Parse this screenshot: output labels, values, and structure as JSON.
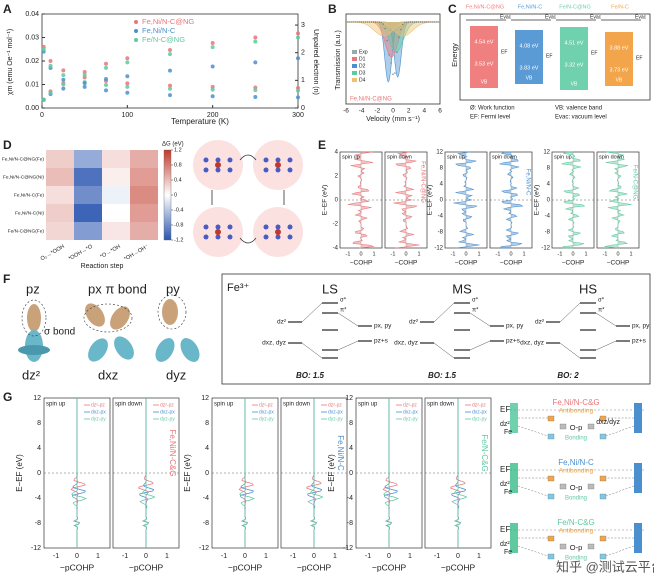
{
  "chart_data": [
    {
      "type": "line",
      "label": "A",
      "x_label": "Temperature (K)",
      "y_label": "χm (emu Oe⁻¹ mol⁻¹)",
      "y2_label": "Unpaired electron (n)",
      "x": [
        2,
        10,
        25,
        50,
        75,
        100,
        150,
        200,
        250,
        300
      ],
      "xlim": [
        0,
        300
      ],
      "xticks": [
        0,
        100,
        200,
        300
      ],
      "ylim": [
        0,
        0.04
      ],
      "yticks": [
        {
          "value": 0,
          "label": "0.00"
        },
        {
          "value": 0.01,
          "label": "0.01"
        },
        {
          "value": 0.02,
          "label": "0.02"
        },
        {
          "value": 0.03,
          "label": "0.03"
        },
        {
          "value": 0.04,
          "label": "0.04"
        }
      ],
      "y2lim": [
        0,
        3.4
      ],
      "y2ticks": [
        0,
        1,
        2,
        3
      ],
      "series": [
        {
          "name": "Fe,Ni/N-C@NG",
          "color": "#e8767a",
          "values": [
            0.026,
            0.02,
            0.016,
            0.013,
            0.0115,
            0.0105,
            0.0095,
            0.009,
            0.0087,
            0.0085
          ]
        },
        {
          "name": "Fe,Ni/N-C",
          "color": "#4a90d0",
          "values": [
            0.024,
            0.017,
            0.012,
            0.009,
            0.0075,
            0.0065,
            0.0055,
            0.005,
            0.0047,
            0.0045
          ]
        },
        {
          "name": "Fe/N-C@NG",
          "color": "#5fc9a0",
          "values": [
            0.025,
            0.018,
            0.014,
            0.011,
            0.0098,
            0.009,
            0.0082,
            0.0078,
            0.0076,
            0.0074
          ]
        },
        {
          "axis": "y2",
          "color": "#e8767a",
          "values": [
            0.3,
            0.6,
            0.9,
            1.3,
            1.6,
            1.8,
            2.1,
            2.35,
            2.55,
            2.7
          ]
        },
        {
          "axis": "y2",
          "color": "#4a90d0",
          "values": [
            0.3,
            0.5,
            0.7,
            0.9,
            1.05,
            1.15,
            1.35,
            1.5,
            1.65,
            1.8
          ]
        },
        {
          "axis": "y2",
          "color": "#5fc9a0",
          "values": [
            0.3,
            0.55,
            0.85,
            1.2,
            1.45,
            1.65,
            1.95,
            2.2,
            2.4,
            2.55
          ]
        }
      ]
    },
    {
      "type": "heatmap",
      "label": "D",
      "title": "ΔG (eV)",
      "x_label": "Reaction step",
      "categories": [
        "O₂→*OOH",
        "*OOH→*O",
        "*O→*OH",
        "*OH→OH⁻"
      ],
      "rows": [
        "Fe,Ni/N-C@NG(Fe)",
        "Fe,Ni/N-C@NG(Ni)",
        "Fe,Ni/N-C(Fe)",
        "Fe,Ni/N-C(Ni)",
        "Fe/N-C@NG(Fe)"
      ],
      "values": [
        [
          0.3,
          -0.6,
          0.2,
          0.5
        ],
        [
          0.4,
          -1.0,
          0.1,
          0.6
        ],
        [
          0.2,
          -0.8,
          -0.1,
          0.7
        ],
        [
          0.3,
          -1.1,
          0.0,
          0.6
        ],
        [
          0.25,
          -0.7,
          0.15,
          0.5
        ]
      ],
      "zlim": [
        -1.2,
        1.2
      ],
      "zticks": [
        1.2,
        0.8,
        0.4,
        0,
        -0.4,
        -0.8,
        -1.2
      ]
    }
  ],
  "figure": {
    "B": {
      "label": "B",
      "x_label": "Velocity (mm s⁻¹)",
      "y_label": "Transmission (a.u.)",
      "sample": "Fe,Ni/N-C@NG",
      "legend": [
        "Exp",
        "D1",
        "D2",
        "D3",
        "D4"
      ],
      "xticks": [
        -6,
        -4,
        -2,
        0,
        2,
        4,
        6
      ]
    },
    "C": {
      "label": "C",
      "samples": [
        "Fe,Ni/N-C@NG",
        "Fe,Ni/N-C",
        "Fe/N-C@NG",
        "Fe/N-C"
      ],
      "work": [
        "4.54 eV",
        "4.08 eV",
        "4.51 eV",
        "3.88 eV"
      ],
      "vb": [
        "3.53 eV",
        "3.83 eV",
        "3.32 eV",
        "3.73 eV"
      ],
      "evac": "Evac",
      "ef": "EF",
      "vbl": "VB",
      "y_label": "Energy",
      "notes": [
        "Ø: Work function",
        "VB: valence band",
        "EF: Fermi level",
        "Evac: vacuum level"
      ]
    },
    "E": {
      "label": "E",
      "groups": [
        {
          "sample": "Fe,Ni/N-C@NG",
          "color": "#e8767a",
          "yticks": [
            4,
            2,
            0,
            -2,
            -4
          ]
        },
        {
          "sample": "Fe,Ni/N-C",
          "color": "#4a90d0",
          "yticks": [
            12,
            8,
            4,
            0,
            -4,
            -8,
            -12
          ]
        },
        {
          "sample": "Fe/N-C@NG",
          "color": "#5fc9a0",
          "yticks": [
            12,
            8,
            4,
            0,
            -4,
            -8,
            -12
          ]
        }
      ],
      "spin": [
        "spin up",
        "spin down"
      ],
      "y_label": "E−EF (eV)",
      "x_label": "−COHP",
      "xticks": [
        -1,
        0,
        1
      ]
    },
    "F": {
      "label": "F",
      "orbitals": [
        "pz",
        "px π bond",
        "py",
        "σ bond",
        "dz²",
        "dxz",
        "dyz"
      ],
      "ion": "Fe³⁺",
      "states": [
        {
          "name": "LS",
          "bo": "BO: 1.5"
        },
        {
          "name": "MS",
          "bo": "BO: 1.5"
        },
        {
          "name": "HS",
          "bo": "BO: 2"
        }
      ],
      "levels": [
        "σ*",
        "π*",
        "dz²",
        "px, py",
        "dxz, dyz",
        "pz+s"
      ]
    },
    "G": {
      "label": "G",
      "groups": [
        {
          "sample": "Fe,Ni/N-C&G",
          "color": "#e8767a"
        },
        {
          "sample": "Fe,Ni/N-C",
          "color": "#4a90d0"
        },
        {
          "sample": "Fe/N-C&G",
          "color": "#5fc9a0"
        }
      ],
      "spin": [
        "spin up",
        "spin down"
      ],
      "legend": [
        "dz²-pz",
        "dxz-px",
        "dyz-py"
      ],
      "x_label": "−pCOHP",
      "y_label": "E−EF (eV)",
      "yticks": [
        12,
        8,
        4,
        0,
        -4,
        -8,
        -12
      ],
      "xticks": [
        -1,
        0,
        1
      ],
      "scheme": {
        "ef": "EF",
        "left": "dz²",
        "right": "dxz/dyz",
        "metal": "Fe",
        "anti": "Antibonding",
        "bond": "Bonding",
        "op": "O-p"
      }
    },
    "watermark": "知乎 @测试云平台"
  }
}
